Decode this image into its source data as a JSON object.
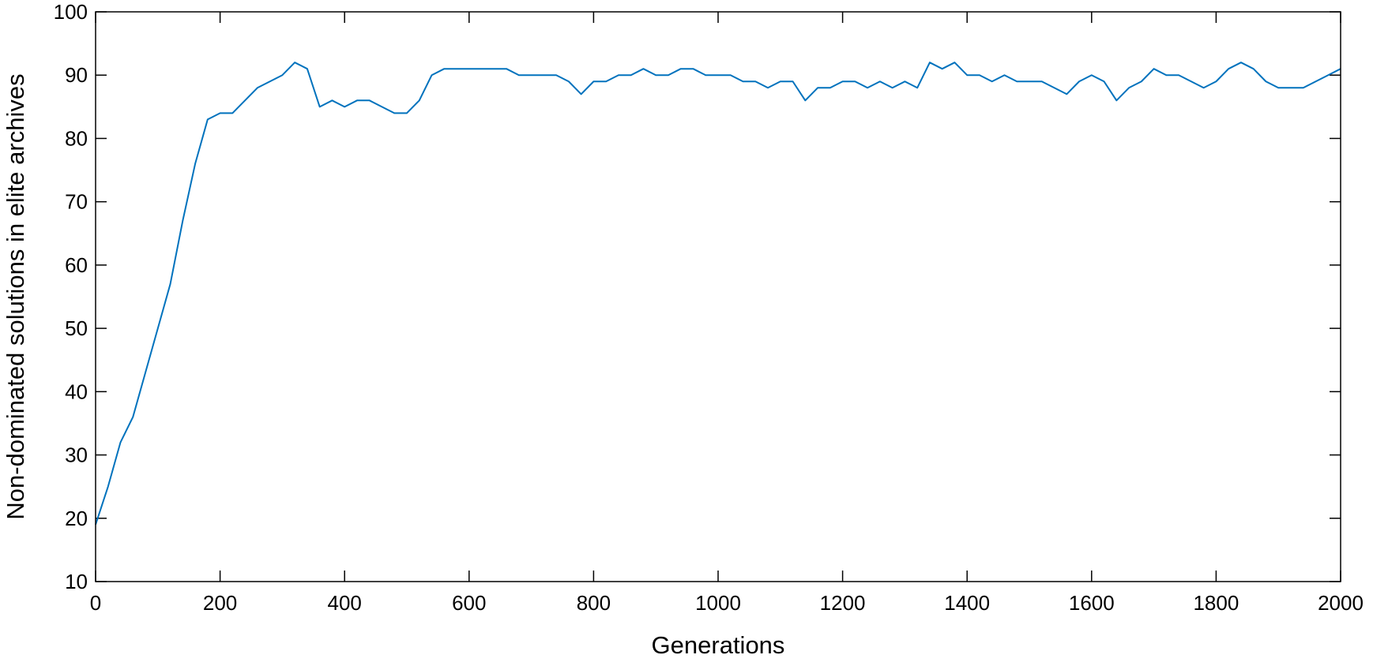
{
  "chart_data": {
    "type": "line",
    "x_label": "Generations",
    "y_label": "Non-dominated solutions in elite archives",
    "x": [
      0,
      20,
      40,
      60,
      80,
      100,
      120,
      140,
      160,
      180,
      200,
      220,
      240,
      260,
      280,
      300,
      320,
      340,
      360,
      380,
      400,
      420,
      440,
      460,
      480,
      500,
      520,
      540,
      560,
      580,
      600,
      620,
      640,
      660,
      680,
      700,
      720,
      740,
      760,
      780,
      800,
      820,
      840,
      860,
      880,
      900,
      920,
      940,
      960,
      980,
      1000,
      1020,
      1040,
      1060,
      1080,
      1100,
      1120,
      1140,
      1160,
      1180,
      1200,
      1220,
      1240,
      1260,
      1280,
      1300,
      1320,
      1340,
      1360,
      1380,
      1400,
      1420,
      1440,
      1460,
      1480,
      1500,
      1520,
      1540,
      1560,
      1580,
      1600,
      1620,
      1640,
      1660,
      1680,
      1700,
      1720,
      1740,
      1760,
      1780,
      1800,
      1820,
      1840,
      1860,
      1880,
      1900,
      1920,
      1940,
      1960,
      1980,
      2000
    ],
    "series": [
      {
        "color": "#0072bd",
        "values": [
          19,
          25,
          32,
          36,
          43,
          50,
          57,
          67,
          76,
          83,
          84,
          84,
          86,
          88,
          89,
          90,
          92,
          91,
          85,
          86,
          85,
          86,
          86,
          85,
          84,
          84,
          86,
          90,
          91,
          91,
          91,
          91,
          91,
          91,
          90,
          90,
          90,
          90,
          89,
          87,
          89,
          89,
          90,
          90,
          91,
          90,
          90,
          91,
          91,
          90,
          90,
          90,
          89,
          89,
          88,
          89,
          89,
          86,
          88,
          88,
          89,
          89,
          88,
          89,
          88,
          89,
          88,
          92,
          91,
          92,
          90,
          90,
          89,
          90,
          89,
          89,
          89,
          88,
          87,
          89,
          90,
          89,
          86,
          88,
          89,
          91,
          90,
          90,
          89,
          88,
          89,
          91,
          92,
          91,
          89,
          88,
          88,
          88,
          89,
          90,
          91
        ]
      }
    ],
    "xlim": [
      0,
      2000
    ],
    "xticks": [
      0,
      200,
      400,
      600,
      800,
      1000,
      1200,
      1400,
      1600,
      1800,
      2000
    ],
    "ylim": [
      10,
      100
    ],
    "yticks": [
      10,
      20,
      30,
      40,
      50,
      60,
      70,
      80,
      90,
      100
    ]
  }
}
